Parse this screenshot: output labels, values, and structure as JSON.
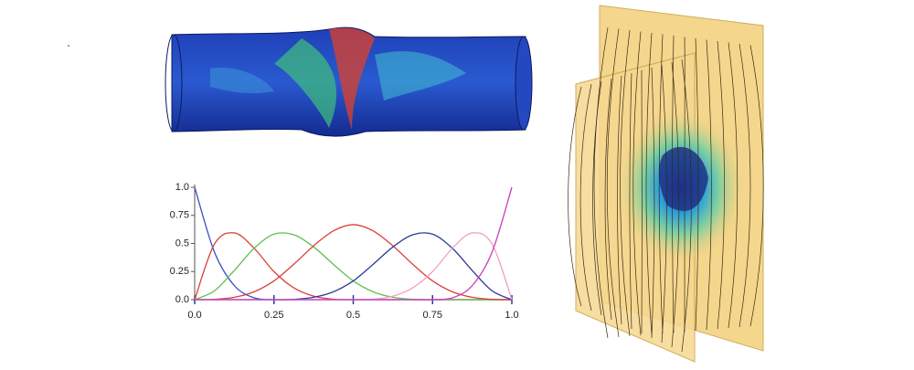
{
  "chart_data": {
    "type": "line",
    "x": [
      0,
      0.0625,
      0.125,
      0.1875,
      0.25,
      0.3125,
      0.375,
      0.4375,
      0.5,
      0.5625,
      0.625,
      0.6875,
      0.75,
      0.8125,
      0.875,
      0.9375,
      1
    ],
    "series": [
      {
        "color": "#3b4fc4",
        "values": [
          1,
          0.422,
          0.125,
          0.016,
          0,
          0,
          0,
          0,
          0,
          0,
          0,
          0,
          0,
          0,
          0,
          0,
          0
        ]
      },
      {
        "color": "#d9403a",
        "values": [
          0,
          0.496,
          0.594,
          0.457,
          0.25,
          0.105,
          0.031,
          0.004,
          0,
          0,
          0,
          0,
          0,
          0,
          0,
          0,
          0
        ]
      },
      {
        "color": "#5cc24a",
        "values": [
          0,
          0.079,
          0.26,
          0.457,
          0.583,
          0.577,
          0.469,
          0.314,
          0.167,
          0.07,
          0.021,
          0.003,
          0,
          0,
          0,
          0,
          0
        ]
      },
      {
        "color": "#d9403a",
        "values": [
          0,
          0.003,
          0.021,
          0.07,
          0.167,
          0.315,
          0.479,
          0.612,
          0.667,
          0.612,
          0.479,
          0.315,
          0.167,
          0.07,
          0.021,
          0.003,
          0
        ]
      },
      {
        "color": "#2c3a9a",
        "values": [
          0,
          0,
          0,
          0,
          0,
          0.003,
          0.021,
          0.07,
          0.167,
          0.314,
          0.469,
          0.577,
          0.583,
          0.457,
          0.26,
          0.079,
          0
        ]
      },
      {
        "color": "#f0a0c8",
        "values": [
          0,
          0,
          0,
          0,
          0,
          0,
          0,
          0,
          0,
          0.004,
          0.031,
          0.105,
          0.25,
          0.457,
          0.594,
          0.496,
          0
        ]
      },
      {
        "color": "#c83ec0",
        "values": [
          0,
          0,
          0,
          0,
          0,
          0,
          0,
          0,
          0,
          0,
          0,
          0,
          0,
          0.016,
          0.125,
          0.422,
          1
        ]
      }
    ],
    "xlim": [
      0,
      1
    ],
    "ylim": [
      0,
      1
    ],
    "xticks": [
      {
        "value": 0,
        "label": "0.0"
      },
      0.25,
      0.5,
      0.75,
      {
        "value": 1,
        "label": "1.0"
      }
    ],
    "yticks": [
      {
        "value": 0,
        "label": "0.0"
      },
      0.25,
      0.5,
      0.75,
      {
        "value": 1,
        "label": "1.0"
      }
    ]
  }
}
